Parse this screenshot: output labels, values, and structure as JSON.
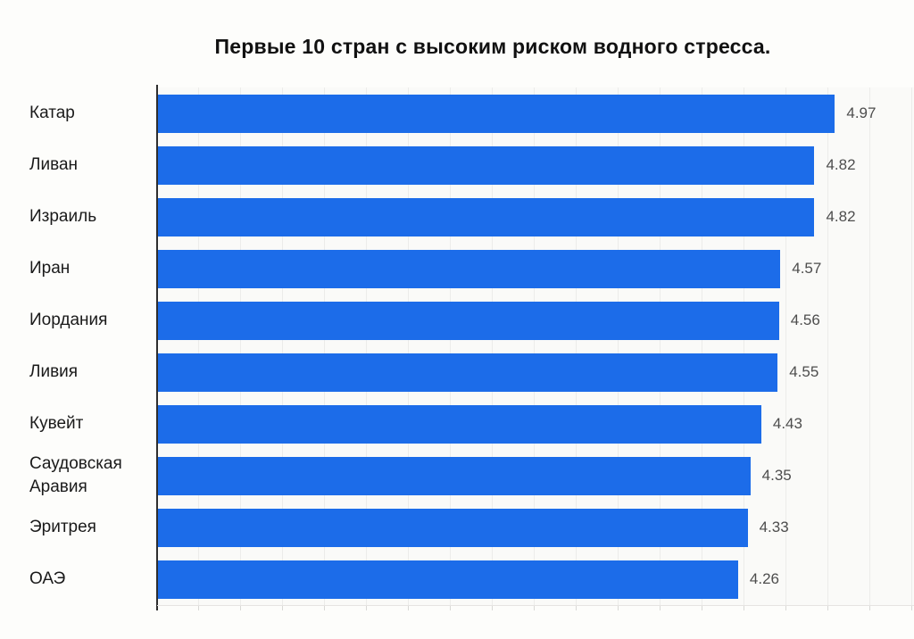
{
  "title": "Первые 10 стран с высоким риском водного стресса.",
  "colors": {
    "bar": "#1c6ce9",
    "axis_line": "#2e2e2e",
    "gridline": "#ececea",
    "label_text": "#1a1a1a",
    "value_text": "#4d4d4d",
    "page_background": "#fdfdfb",
    "plot_background": "#fafaf8"
  },
  "chart_data": {
    "type": "bar",
    "orientation": "horizontal",
    "title": "Первые 10 стран с высоким риском водного стресса.",
    "categories": [
      "Катар",
      "Ливан",
      "Израиль",
      "Иран",
      "Иордания",
      "Ливия",
      "Кувейт",
      "Саудовская Аравия",
      "Эритрея",
      "ОАЭ"
    ],
    "values": [
      4.97,
      4.82,
      4.82,
      4.57,
      4.56,
      4.55,
      4.43,
      4.35,
      4.33,
      4.26
    ],
    "value_labels": [
      "4.97",
      "4.82",
      "4.82",
      "4.57",
      "4.56",
      "4.55",
      "4.43",
      "4.35",
      "4.33",
      "4.26"
    ],
    "xlabel": "",
    "ylabel": "",
    "xlim": [
      0,
      5.55
    ],
    "grid": true,
    "legend": false,
    "data_labels": true
  }
}
